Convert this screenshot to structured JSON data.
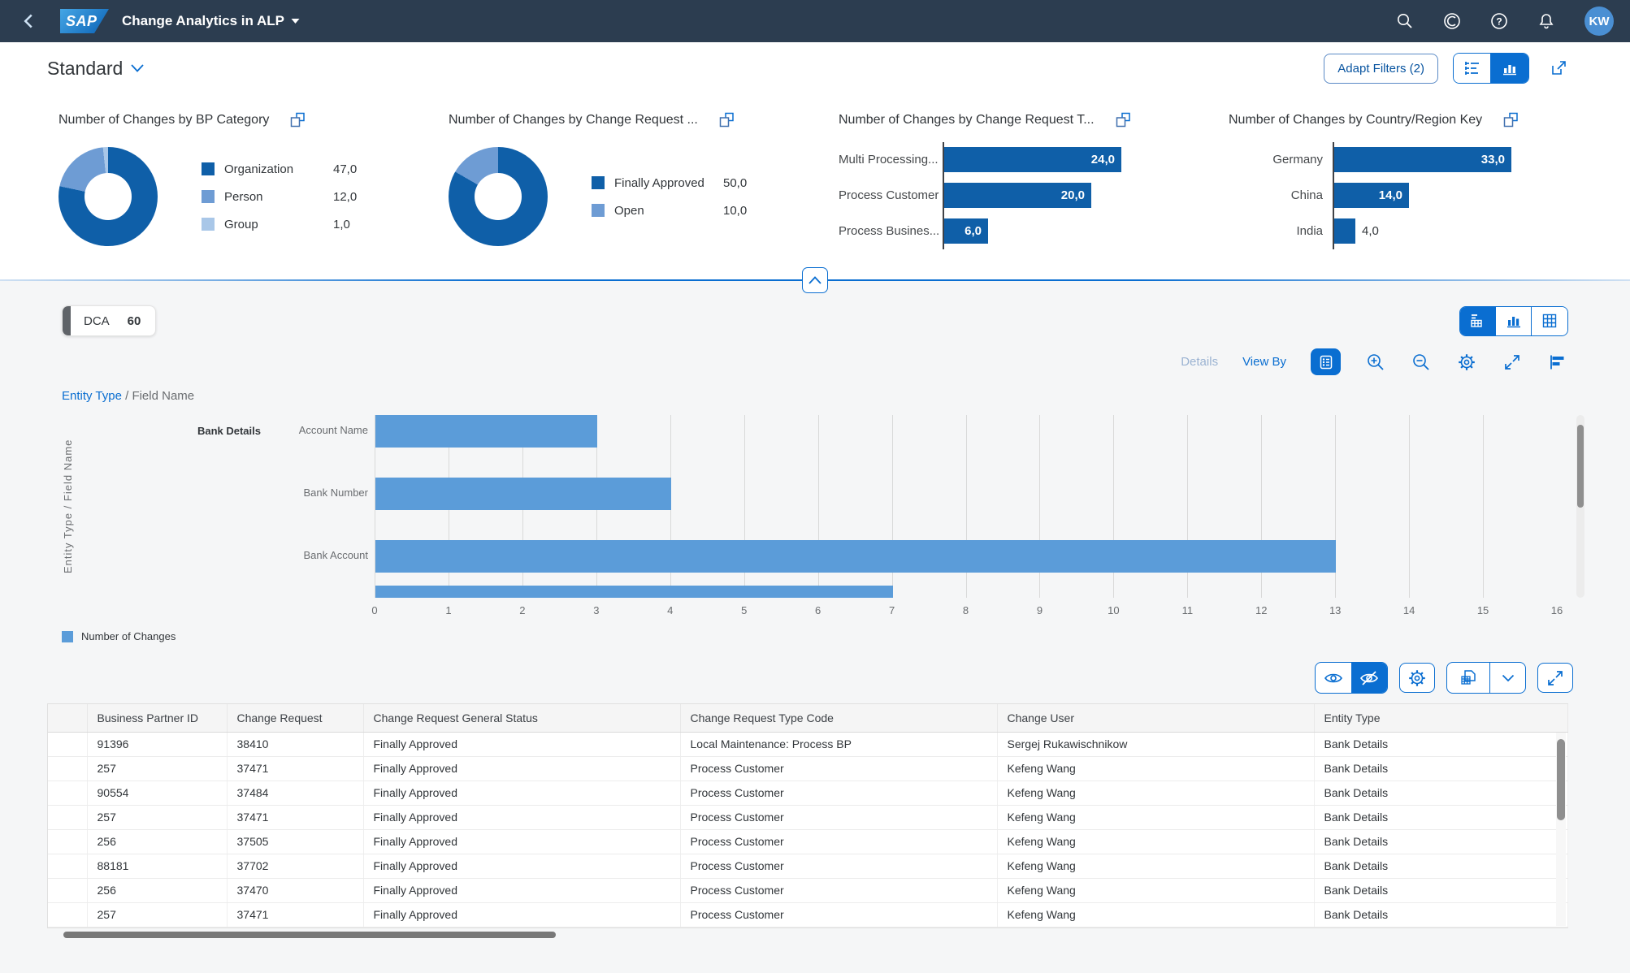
{
  "shell": {
    "sap": "SAP",
    "title": "Change Analytics in ALP",
    "avatar": "KW"
  },
  "filter_bar": {
    "variant_title": "Standard",
    "adapt_filters": "Adapt Filters (2)"
  },
  "colors": {
    "accent": "#0a6ed1",
    "chart_dark": "#0f5fa8",
    "chart_medium": "#6e9cd4",
    "chart_light": "#a9c7e8",
    "main_bar": "#5b9cd9"
  },
  "kpi_cards": [
    {
      "type": "donut",
      "title": "Number of Changes by BP Category",
      "items": [
        {
          "label": "Organization",
          "value": "47,0",
          "num": 47,
          "color": "#0f5fa8"
        },
        {
          "label": "Person",
          "value": "12,0",
          "num": 12,
          "color": "#6e9cd4"
        },
        {
          "label": "Group",
          "value": "1,0",
          "num": 1,
          "color": "#a9c7e8"
        }
      ]
    },
    {
      "type": "donut",
      "title": "Number of Changes by Change Request ...",
      "items": [
        {
          "label": "Finally Approved",
          "value": "50,0",
          "num": 50,
          "color": "#0f5fa8"
        },
        {
          "label": "Open",
          "value": "10,0",
          "num": 10,
          "color": "#6e9cd4"
        }
      ]
    },
    {
      "type": "bar",
      "title": "Number of Changes by Change Request T...",
      "items": [
        {
          "label": "Multi Processing...",
          "value": "24,0",
          "num": 24,
          "inside": true
        },
        {
          "label": "Process Customer",
          "value": "20,0",
          "num": 20,
          "inside": true
        },
        {
          "label": "Process Busines...",
          "value": "6,0",
          "num": 6,
          "inside": true
        }
      ]
    },
    {
      "type": "bar",
      "title": "Number of Changes by Country/Region Key",
      "items": [
        {
          "label": "Germany",
          "value": "33,0",
          "num": 33,
          "inside": true
        },
        {
          "label": "China",
          "value": "14,0",
          "num": 14,
          "inside": true
        },
        {
          "label": "India",
          "value": "4,0",
          "num": 4,
          "inside": false
        }
      ]
    }
  ],
  "chart_panel": {
    "kpi_tag": {
      "label": "DCA",
      "count": "60"
    },
    "toolbar": {
      "details": "Details",
      "view_by": "View By"
    },
    "breadcrumb": {
      "link": "Entity Type",
      "rest": " / Field Name"
    },
    "axis_label": "Entity Type / Field Name",
    "group_label": "Bank Details",
    "legend": "Number of Changes"
  },
  "chart_data": [
    {
      "type": "pie",
      "title": "Number of Changes by BP Category",
      "categories": [
        "Organization",
        "Person",
        "Group"
      ],
      "values": [
        47.0,
        12.0,
        1.0
      ],
      "labels": [
        "47,0",
        "12,0",
        "1,0"
      ],
      "legend_position": "right"
    },
    {
      "type": "pie",
      "title": "Number of Changes by Change Request ...",
      "categories": [
        "Finally Approved",
        "Open"
      ],
      "values": [
        50.0,
        10.0
      ],
      "labels": [
        "50,0",
        "10,0"
      ],
      "legend_position": "right"
    },
    {
      "type": "bar",
      "orientation": "horizontal",
      "title": "Number of Changes by Change Request T...",
      "categories": [
        "Multi Processing...",
        "Process Customer",
        "Process Busines..."
      ],
      "values": [
        24.0,
        20.0,
        6.0
      ],
      "labels": [
        "24,0",
        "20,0",
        "6,0"
      ]
    },
    {
      "type": "bar",
      "orientation": "horizontal",
      "title": "Number of Changes by Country/Region Key",
      "categories": [
        "Germany",
        "China",
        "India"
      ],
      "values": [
        33.0,
        14.0,
        4.0
      ],
      "labels": [
        "33,0",
        "14,0",
        "4,0"
      ]
    },
    {
      "type": "bar",
      "orientation": "horizontal",
      "title": "",
      "group_label": "Bank Details",
      "categories": [
        "Account Name",
        "Bank Number",
        "Bank Account",
        ""
      ],
      "values": [
        3,
        4,
        13,
        7
      ],
      "xlabel": "",
      "ylabel": "Entity Type / Field Name",
      "xlim": [
        0,
        16
      ],
      "xtick_step": 1,
      "grid": true,
      "series_name": "Number of Changes",
      "note_last_row_clipped": true
    }
  ],
  "table": {
    "columns": [
      "Business Partner ID",
      "Change Request",
      "Change Request General Status",
      "Change Request Type Code",
      "Change User",
      "Entity Type"
    ],
    "rows": [
      [
        "91396",
        "38410",
        "Finally Approved",
        "Local Maintenance: Process BP",
        "Sergej Rukawischnikow",
        "Bank Details"
      ],
      [
        "257",
        "37471",
        "Finally Approved",
        "Process Customer",
        "Kefeng Wang",
        "Bank Details"
      ],
      [
        "90554",
        "37484",
        "Finally Approved",
        "Process Customer",
        "Kefeng Wang",
        "Bank Details"
      ],
      [
        "257",
        "37471",
        "Finally Approved",
        "Process Customer",
        "Kefeng Wang",
        "Bank Details"
      ],
      [
        "256",
        "37505",
        "Finally Approved",
        "Process Customer",
        "Kefeng Wang",
        "Bank Details"
      ],
      [
        "88181",
        "37702",
        "Finally Approved",
        "Process Customer",
        "Kefeng Wang",
        "Bank Details"
      ],
      [
        "256",
        "37470",
        "Finally Approved",
        "Process Customer",
        "Kefeng Wang",
        "Bank Details"
      ],
      [
        "257",
        "37471",
        "Finally Approved",
        "Process Customer",
        "Kefeng Wang",
        "Bank Details"
      ]
    ]
  }
}
